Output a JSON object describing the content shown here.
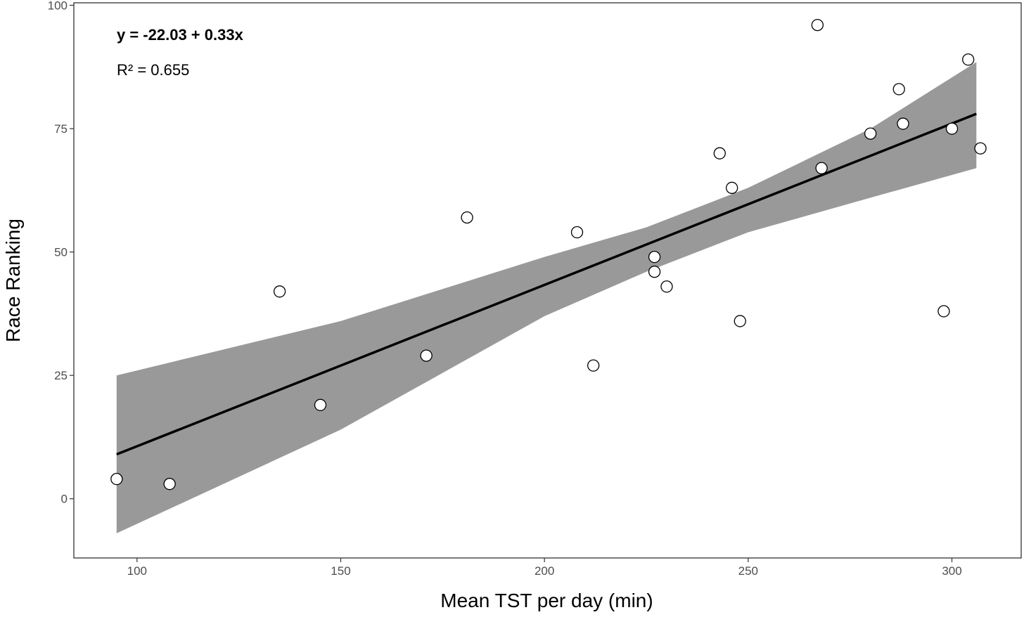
{
  "chart_data": {
    "type": "scatter",
    "title": "",
    "xlabel": "Mean TST per day (min)",
    "ylabel": "Race Ranking",
    "xlim": [
      84.5,
      317
    ],
    "ylim": [
      -12,
      100.5
    ],
    "x_ticks": [
      100,
      150,
      200,
      250,
      300
    ],
    "y_ticks": [
      0,
      25,
      50,
      75,
      100
    ],
    "grid": false,
    "annotations": {
      "equation": "y = -22.03 + 0.33x",
      "r_squared": "R² = 0.655"
    },
    "points": [
      {
        "x": 95,
        "y": 4
      },
      {
        "x": 108,
        "y": 3
      },
      {
        "x": 135,
        "y": 42
      },
      {
        "x": 145,
        "y": 19
      },
      {
        "x": 171,
        "y": 29
      },
      {
        "x": 181,
        "y": 57
      },
      {
        "x": 208,
        "y": 54
      },
      {
        "x": 212,
        "y": 27
      },
      {
        "x": 227,
        "y": 46
      },
      {
        "x": 227,
        "y": 49
      },
      {
        "x": 230,
        "y": 43
      },
      {
        "x": 243,
        "y": 70
      },
      {
        "x": 246,
        "y": 63
      },
      {
        "x": 248,
        "y": 36
      },
      {
        "x": 267,
        "y": 96
      },
      {
        "x": 268,
        "y": 67
      },
      {
        "x": 280,
        "y": 74
      },
      {
        "x": 287,
        "y": 83
      },
      {
        "x": 288,
        "y": 76
      },
      {
        "x": 298,
        "y": 38
      },
      {
        "x": 300,
        "y": 75
      },
      {
        "x": 304,
        "y": 89
      },
      {
        "x": 307,
        "y": 71
      }
    ],
    "fit_line": {
      "x": [
        95,
        306
      ],
      "y": [
        9,
        78
      ]
    },
    "confidence_band": {
      "x": [
        95,
        150,
        200,
        225,
        250,
        280,
        306
      ],
      "upper": [
        25,
        36,
        49,
        55,
        63,
        75,
        88.5
      ],
      "lower": [
        -7,
        14,
        37,
        46,
        54,
        61,
        67
      ]
    },
    "colors": {
      "band": "#999999",
      "line": "#000000",
      "point_stroke": "#000000",
      "point_fill": "#ffffff",
      "panel_border": "#333333"
    }
  }
}
